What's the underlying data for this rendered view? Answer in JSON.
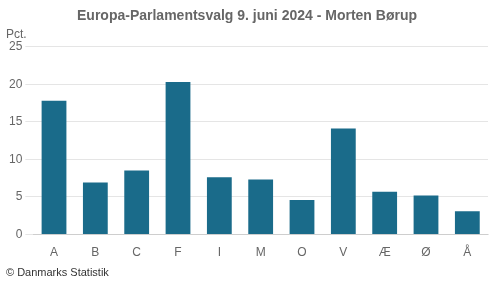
{
  "chart_data": {
    "type": "bar",
    "title": "Europa-Parlamentsvalg 9. juni 2024 - Morten Børup",
    "ylabel": "Pct.",
    "footnote": "© Danmarks Statistik",
    "categories": [
      "A",
      "B",
      "C",
      "F",
      "I",
      "M",
      "O",
      "V",
      "Æ",
      "Ø",
      "Å"
    ],
    "values": [
      17.8,
      6.9,
      8.5,
      20.3,
      7.6,
      7.3,
      4.6,
      14.1,
      5.7,
      5.2,
      3.1
    ],
    "color": "#1a6b8a",
    "ylim": [
      0,
      25
    ],
    "yticks": [
      0,
      5,
      10,
      15,
      20,
      25
    ],
    "grid": true
  }
}
